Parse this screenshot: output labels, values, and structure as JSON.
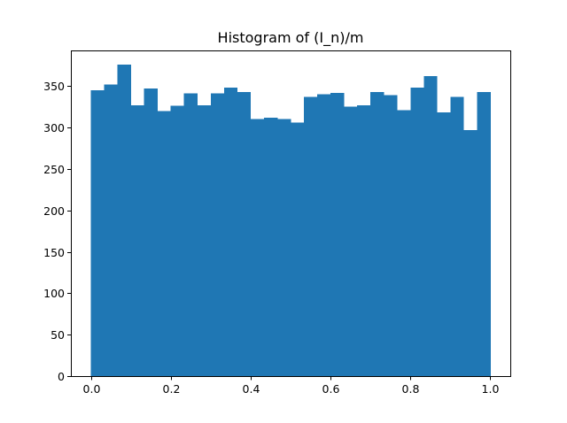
{
  "chart_data": {
    "type": "bar",
    "title": "Histogram of (I_n)/m",
    "xlabel": "",
    "ylabel": "",
    "xlim": [
      -0.05,
      1.05
    ],
    "ylim": [
      0,
      393
    ],
    "bin_edges": [
      0.0,
      0.0333,
      0.0667,
      0.1,
      0.1333,
      0.1667,
      0.2,
      0.2333,
      0.2667,
      0.3,
      0.3333,
      0.3667,
      0.4,
      0.4333,
      0.4667,
      0.5,
      0.5333,
      0.5667,
      0.6,
      0.6333,
      0.6667,
      0.7,
      0.7333,
      0.7667,
      0.8,
      0.8333,
      0.8667,
      0.9,
      0.9333,
      0.9667,
      1.0
    ],
    "values": [
      345,
      352,
      376,
      327,
      347,
      320,
      326,
      341,
      327,
      341,
      348,
      343,
      310,
      312,
      310,
      306,
      337,
      340,
      342,
      325,
      327,
      343,
      339,
      321,
      348,
      362,
      318,
      337,
      297,
      343
    ],
    "bar_color": "#1f77b4",
    "x_ticks": [
      0.0,
      0.2,
      0.4,
      0.6,
      0.8,
      1.0
    ],
    "x_tick_labels": [
      "0.0",
      "0.2",
      "0.4",
      "0.6",
      "0.8",
      "1.0"
    ],
    "y_ticks": [
      0,
      50,
      100,
      150,
      200,
      250,
      300,
      350
    ],
    "y_tick_labels": [
      "0",
      "50",
      "100",
      "150",
      "200",
      "250",
      "300",
      "350"
    ],
    "grid": false,
    "legend": "none"
  }
}
